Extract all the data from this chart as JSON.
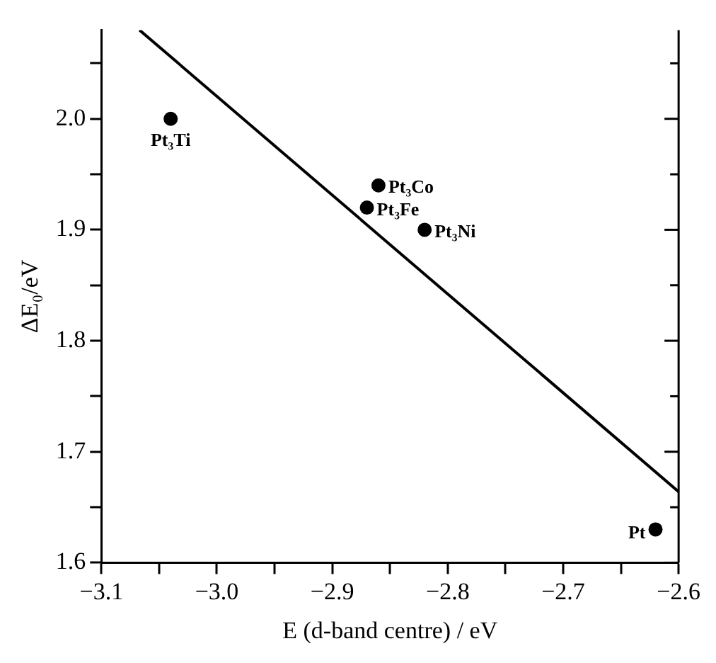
{
  "chart_data": {
    "type": "scatter",
    "xlabel": "E (d-band centre) / eV",
    "ylabel": "ΔE₀/eV",
    "xlim": [
      -3.1,
      -2.6
    ],
    "ylim": [
      1.6,
      2.08
    ],
    "xticks": [
      {
        "value": -3.1,
        "label": "−3.1"
      },
      {
        "value": -3.05,
        "label": null
      },
      {
        "value": -3.0,
        "label": "−3.0"
      },
      {
        "value": -2.95,
        "label": null
      },
      {
        "value": -2.9,
        "label": "−2.9"
      },
      {
        "value": -2.85,
        "label": null
      },
      {
        "value": -2.8,
        "label": "−2.8"
      },
      {
        "value": -2.75,
        "label": null
      },
      {
        "value": -2.7,
        "label": "−2.7"
      },
      {
        "value": -2.65,
        "label": null
      },
      {
        "value": -2.6,
        "label": "−2.6"
      }
    ],
    "yticks": [
      {
        "value": 1.6,
        "label": "1.6"
      },
      {
        "value": 1.65,
        "label": null
      },
      {
        "value": 1.7,
        "label": "1.7"
      },
      {
        "value": 1.75,
        "label": null
      },
      {
        "value": 1.8,
        "label": "1.8"
      },
      {
        "value": 1.85,
        "label": null
      },
      {
        "value": 1.9,
        "label": "1.9"
      },
      {
        "value": 1.95,
        "label": null
      },
      {
        "value": 2.0,
        "label": "2.0"
      },
      {
        "value": 2.05,
        "label": null
      }
    ],
    "grid": false,
    "legend": false,
    "series": [
      {
        "type": "scatter",
        "color": "#000000",
        "marker": "circle",
        "x": [
          -3.04,
          -2.86,
          -2.87,
          -2.82,
          -2.62
        ],
        "values": [
          2.0,
          1.94,
          1.92,
          1.9,
          1.63
        ]
      },
      {
        "type": "line",
        "color": "#000000",
        "line_style": "solid",
        "x": [
          -3.067,
          -2.6
        ],
        "values": [
          2.08,
          1.664
        ]
      }
    ],
    "annotations": [
      {
        "text": "Pt₃Ti",
        "x": -3.04,
        "y": 2.0
      },
      {
        "text": "Pt₃Co",
        "x": -2.86,
        "y": 1.94
      },
      {
        "text": "Pt₃Fe",
        "x": -2.87,
        "y": 1.92
      },
      {
        "text": "Pt₃Ni",
        "x": -2.82,
        "y": 1.9
      },
      {
        "text": "Pt",
        "x": -2.62,
        "y": 1.63
      }
    ]
  }
}
